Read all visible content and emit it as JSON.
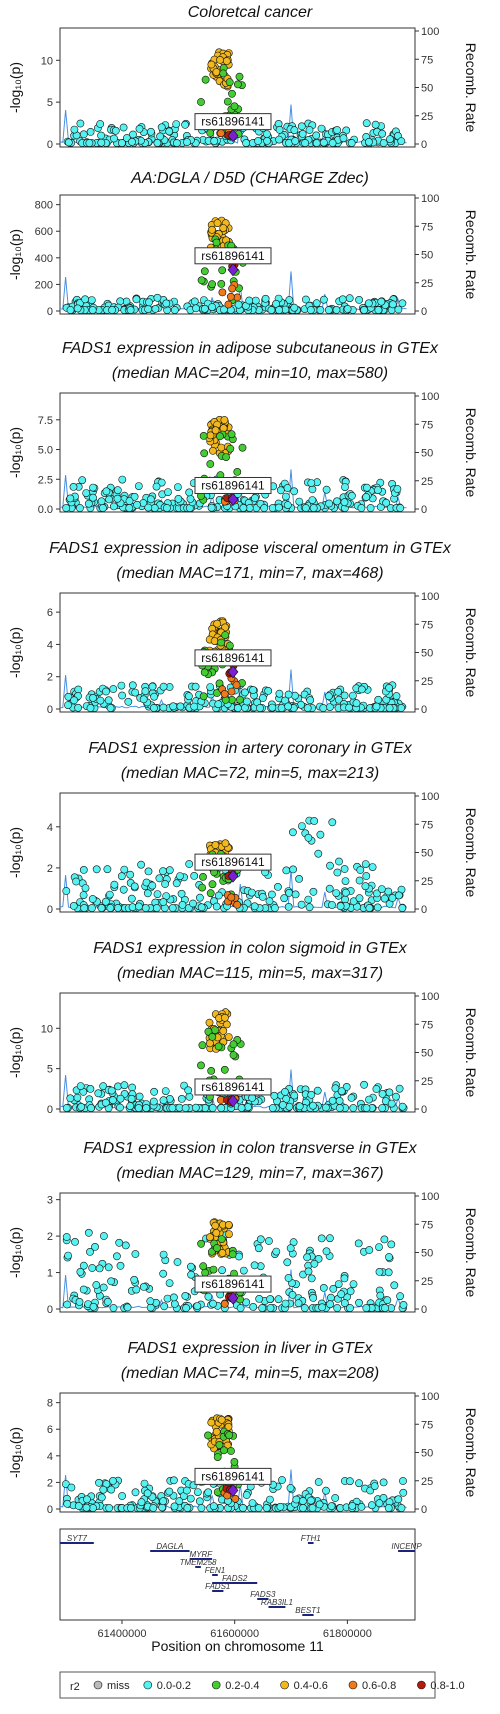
{
  "chart_data": {
    "type": "scatter",
    "x_label": "Position on chromosome 11",
    "x_ticks": [
      61400000,
      61600000,
      61800000
    ],
    "x_range": [
      61290000,
      61920000
    ],
    "lead_snp": "rs61896141",
    "lead_position": 61597000,
    "recomb_axis_label": "Recomb. Rate",
    "recomb_ticks": [
      0,
      25,
      50,
      75,
      100
    ],
    "y_label": "-log₁₀(p)",
    "panels": [
      {
        "title": [
          "Coloretcal cancer"
        ],
        "y_ticks": [
          0,
          5,
          10
        ],
        "y_max": 13.5,
        "peak": 11,
        "lead_y": 1.0,
        "bg": 2.5
      },
      {
        "title": [
          "AA:DGLA / D5D (CHARGE Zdec)"
        ],
        "y_ticks": [
          0,
          200,
          400,
          600,
          800
        ],
        "y_max": 850,
        "peak": 690,
        "lead_y": 310,
        "bg": 100
      },
      {
        "title": [
          "FADS1 expression in adipose subcutaneous in GTEx",
          "(median MAC=204, min=10, max=580)"
        ],
        "y_ticks": [
          0,
          2.5,
          5.0,
          7.5
        ],
        "y_tick_labels": [
          "0.0",
          "2.5",
          "5.0",
          "7.5"
        ],
        "y_max": 9.5,
        "peak": 7.5,
        "lead_y": 0.8,
        "bg": 2.5
      },
      {
        "title": [
          "FADS1 expression in adipose visceral omentum in GTEx",
          "(median MAC=171, min=7, max=468)"
        ],
        "y_ticks": [
          0,
          2,
          4,
          6
        ],
        "y_max": 7,
        "peak": 5.5,
        "lead_y": 2.3,
        "bg": 1.5
      },
      {
        "title": [
          "FADS1 expression in artery coronary in GTEx",
          "(median MAC=72, min=5, max=213)"
        ],
        "y_ticks": [
          0,
          2,
          4
        ],
        "y_max": 5.5,
        "peak": 3.2,
        "lead_y": 1.6,
        "bg": 2.2
      },
      {
        "title": [
          "FADS1 expression in colon sigmoid in GTEx",
          "(median MAC=115, min=5, max=317)"
        ],
        "y_ticks": [
          0,
          5,
          10
        ],
        "y_max": 14,
        "peak": 12,
        "lead_y": 1.0,
        "bg": 3
      },
      {
        "title": [
          "FADS1 expression in colon transverse in GTEx",
          "(median MAC=129, min=7, max=367)"
        ],
        "y_ticks": [
          0,
          1,
          2,
          3
        ],
        "y_max": 3.1,
        "peak": 2.4,
        "lead_y": 0.3,
        "bg": 2.1
      },
      {
        "title": [
          "FADS1 expression in liver in GTEx",
          "(median MAC=74, min=5, max=208)"
        ],
        "y_ticks": [
          0,
          2,
          4,
          6,
          8
        ],
        "y_max": 8.5,
        "peak": 7,
        "lead_y": 1.4,
        "bg": 2.2
      }
    ],
    "genes": [
      {
        "name": "SYT7",
        "start": 61290000,
        "end": 61350000,
        "row": 0
      },
      {
        "name": "FTH1",
        "start": 61730000,
        "end": 61740000,
        "row": 0
      },
      {
        "name": "DAGLA",
        "start": 61450000,
        "end": 61520000,
        "row": 1
      },
      {
        "name": "INCENP",
        "start": 61890000,
        "end": 61920000,
        "row": 1
      },
      {
        "name": "MYRF",
        "start": 61520000,
        "end": 61560000,
        "row": 2
      },
      {
        "name": "TMEM258",
        "start": 61530000,
        "end": 61540000,
        "row": 3
      },
      {
        "name": "FEN1",
        "start": 61560000,
        "end": 61570000,
        "row": 4
      },
      {
        "name": "FADS2",
        "start": 61560000,
        "end": 61640000,
        "row": 5
      },
      {
        "name": "FADS1",
        "start": 61560000,
        "end": 61580000,
        "row": 6
      },
      {
        "name": "FADS3",
        "start": 61640000,
        "end": 61660000,
        "row": 7
      },
      {
        "name": "RAB3IL1",
        "start": 61660000,
        "end": 61690000,
        "row": 8
      },
      {
        "name": "BEST1",
        "start": 61720000,
        "end": 61740000,
        "row": 9
      }
    ],
    "legend": {
      "title": "r2",
      "items": [
        {
          "label": "miss",
          "color": "#bbbbbb"
        },
        {
          "label": "0.0-0.2",
          "color": "#55f2f2"
        },
        {
          "label": "0.2-0.4",
          "color": "#44cc33"
        },
        {
          "label": "0.4-0.6",
          "color": "#f2b81c"
        },
        {
          "label": "0.6-0.8",
          "color": "#f07a1a"
        },
        {
          "label": "0.8-1.0",
          "color": "#b21c0e"
        }
      ]
    },
    "lead_color": "#7a1fd2",
    "recomb_color": "#4a90e2"
  }
}
